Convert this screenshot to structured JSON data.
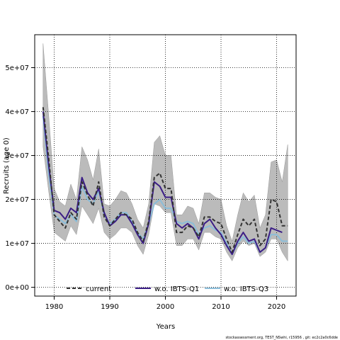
{
  "chart_data": {
    "type": "line",
    "title": "",
    "xlabel": "Years",
    "ylabel": "Recruits (age 0)",
    "xlim": [
      1976.5,
      2023.5
    ],
    "ylim": [
      -2000000,
      57500000
    ],
    "grid": true,
    "grid_style": "dotted",
    "legend_placement": "bottom",
    "x_ticks": [
      1980,
      1990,
      2000,
      2010,
      2020
    ],
    "x_tick_labels": [
      "1980",
      "1990",
      "2000",
      "2010",
      "2020"
    ],
    "y_ticks": [
      0,
      10000000,
      20000000,
      30000000,
      40000000,
      50000000
    ],
    "y_tick_labels": [
      "0e+00",
      "1e+07",
      "2e+07",
      "3e+07",
      "4e+07",
      "5e+07"
    ],
    "x": [
      1978,
      1979,
      1980,
      1981,
      1982,
      1983,
      1984,
      1985,
      1986,
      1987,
      1988,
      1989,
      1990,
      1991,
      1992,
      1993,
      1994,
      1995,
      1996,
      1997,
      1998,
      1999,
      2000,
      2001,
      2002,
      2003,
      2004,
      2005,
      2006,
      2007,
      2008,
      2009,
      2010,
      2011,
      2012,
      2013,
      2014,
      2015,
      2016,
      2017,
      2018,
      2019,
      2020,
      2021,
      2022
    ],
    "band": {
      "color": "#bbbbbb",
      "lower": [
        32000000,
        22000000,
        12500000,
        11500000,
        10500000,
        14000000,
        12000000,
        18500000,
        16500000,
        14500000,
        18000000,
        12500000,
        11000000,
        12000000,
        13500000,
        13500000,
        12500000,
        9500000,
        7500000,
        12000000,
        19000000,
        18500000,
        17000000,
        17000000,
        9500000,
        9500000,
        11000000,
        11000000,
        8500000,
        12500000,
        12500000,
        11500000,
        11000000,
        8000000,
        6000000,
        9000000,
        10500000,
        9500000,
        10000000,
        7000000,
        8000000,
        11000000,
        11000000,
        8000000,
        6000000
      ],
      "upper": [
        55500000,
        39500000,
        22500000,
        19500000,
        18500000,
        23500000,
        20000000,
        32000000,
        29000000,
        24500000,
        31500000,
        19000000,
        18500000,
        20000000,
        22000000,
        21500000,
        19000000,
        15500000,
        13500000,
        19000000,
        33000000,
        34500000,
        30000000,
        30000000,
        16500000,
        16500000,
        18500000,
        18000000,
        14500000,
        21500000,
        21500000,
        20500000,
        20000000,
        14000000,
        10500000,
        16500000,
        21500000,
        19500000,
        21000000,
        13500000,
        16500000,
        28500000,
        29000000,
        24000000,
        32500000
      ]
    },
    "series": [
      {
        "name": "current",
        "color": "#333333",
        "style": "dashed",
        "values": [
          41000000,
          29500000,
          16500000,
          15000000,
          13500000,
          17000000,
          15500000,
          24000000,
          21000000,
          18500000,
          24000000,
          16000000,
          14000000,
          15500000,
          17000000,
          16500000,
          15500000,
          12500000,
          10500000,
          15000000,
          25000000,
          26000000,
          22500000,
          22500000,
          12500000,
          12500000,
          14000000,
          13500000,
          11500000,
          16000000,
          16000000,
          15000000,
          14500000,
          11000000,
          8000000,
          12000000,
          15500000,
          14000000,
          15500000,
          9500000,
          11000000,
          20000000,
          19500000,
          14000000,
          14000000
        ]
      },
      {
        "name": "w.o. IBTS-Q1",
        "color": "#3b1e86",
        "style": "solid",
        "values": [
          40000000,
          28000000,
          17500000,
          17000000,
          15500000,
          18000000,
          17000000,
          25000000,
          21500000,
          20000000,
          22500000,
          17000000,
          14000000,
          15000000,
          16500000,
          16500000,
          14500000,
          12000000,
          10000000,
          14500000,
          24000000,
          23000000,
          20500000,
          20500000,
          14500000,
          13500000,
          14500000,
          13500000,
          11000000,
          14500000,
          15500000,
          13500000,
          12000000,
          9500000,
          7500000,
          10500000,
          12500000,
          10500000,
          11000000,
          8000000,
          9000000,
          13500000,
          13000000,
          12500000,
          null
        ]
      },
      {
        "name": "w.o. IBTS-Q3",
        "color": "#8bbdd9",
        "style": "solid",
        "values": [
          39000000,
          26000000,
          16500000,
          15500000,
          14500000,
          16500000,
          15000000,
          23000000,
          20000000,
          19000000,
          22000000,
          16500000,
          14500000,
          15500000,
          17000000,
          17000000,
          15000000,
          12500000,
          11000000,
          14500000,
          19000000,
          20000000,
          18000000,
          18000000,
          15000000,
          14500000,
          15000000,
          14500000,
          12000000,
          13500000,
          14000000,
          13000000,
          12500000,
          10000000,
          7500000,
          10000000,
          11500000,
          10000000,
          10500000,
          8000000,
          9000000,
          12000000,
          12000000,
          10500000,
          10500000
        ]
      }
    ],
    "footer": "stockassessment.org, TEST_NSwhi, r15956 ,  git: ec2c2a0c6dde"
  }
}
